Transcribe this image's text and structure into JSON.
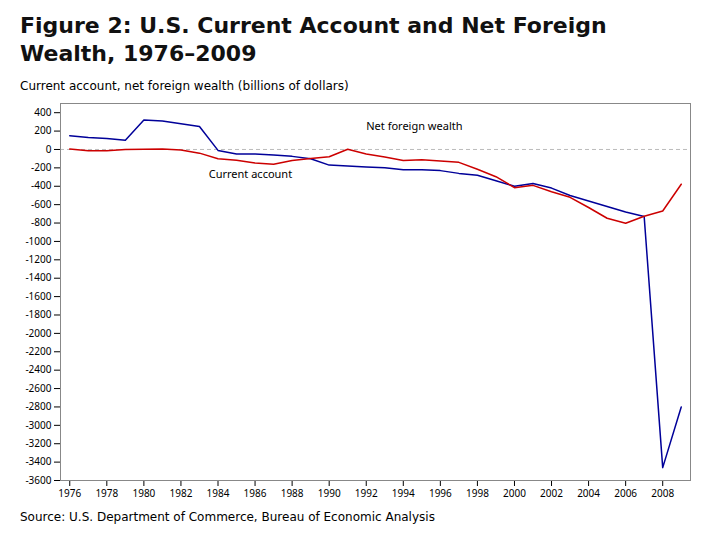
{
  "chart_data": {
    "type": "line",
    "title": "Figure 2: U.S. Current Account and Net Foreign Wealth, 1976–2009",
    "y_label": "Current account, net foreign wealth (billions of dollars)",
    "source": "Source: U.S. Department of Commerce, Bureau of Economic Analysis",
    "x": [
      1976,
      1977,
      1978,
      1979,
      1980,
      1981,
      1982,
      1983,
      1984,
      1985,
      1986,
      1987,
      1988,
      1989,
      1990,
      1991,
      1992,
      1993,
      1994,
      1995,
      1996,
      1997,
      1998,
      1999,
      2000,
      2001,
      2002,
      2003,
      2004,
      2005,
      2006,
      2007,
      2008,
      2009
    ],
    "series": [
      {
        "name": "Net foreign wealth",
        "color": "#000099",
        "values": [
          150,
          130,
          120,
          100,
          320,
          310,
          280,
          250,
          -10,
          -50,
          -50,
          -60,
          -75,
          -100,
          -170,
          -180,
          -190,
          -200,
          -220,
          -220,
          -230,
          -260,
          -280,
          -340,
          -400,
          -370,
          -420,
          -500,
          -560,
          -620,
          -680,
          -730,
          -3460,
          -2800
        ]
      },
      {
        "name": "Current account",
        "color": "#cc0000",
        "values": [
          4,
          -14,
          -15,
          -1,
          2,
          5,
          -5,
          -40,
          -100,
          -118,
          -147,
          -161,
          -121,
          -99,
          -79,
          3,
          -50,
          -82,
          -121,
          -113,
          -124,
          -140,
          -215,
          -296,
          -415,
          -390,
          -459,
          -520,
          -631,
          -748,
          -803,
          -726,
          -669,
          -378
        ]
      }
    ],
    "xlim": [
      1975.5,
      2009.5
    ],
    "xticks": [
      1976,
      1978,
      1980,
      1982,
      1984,
      1986,
      1988,
      1990,
      1992,
      1994,
      1996,
      1998,
      2000,
      2002,
      2004,
      2006,
      2008
    ],
    "ylim": [
      -3600,
      500
    ],
    "yticks": [
      400,
      200,
      0,
      -200,
      -400,
      -600,
      -800,
      -1000,
      -1200,
      -1400,
      -1600,
      -1800,
      -2000,
      -2200,
      -2400,
      -2600,
      -2800,
      -3000,
      -3200,
      -3400,
      -3600
    ],
    "hlines": [
      {
        "y": 0,
        "color": "#aaaaaa",
        "line_style": "dashed"
      }
    ],
    "annotations": [
      {
        "text": "Net foreign wealth",
        "x": 1992,
        "y": 255
      },
      {
        "text": "Current account",
        "x": 1983.5,
        "y": -275
      }
    ],
    "grid": false
  }
}
